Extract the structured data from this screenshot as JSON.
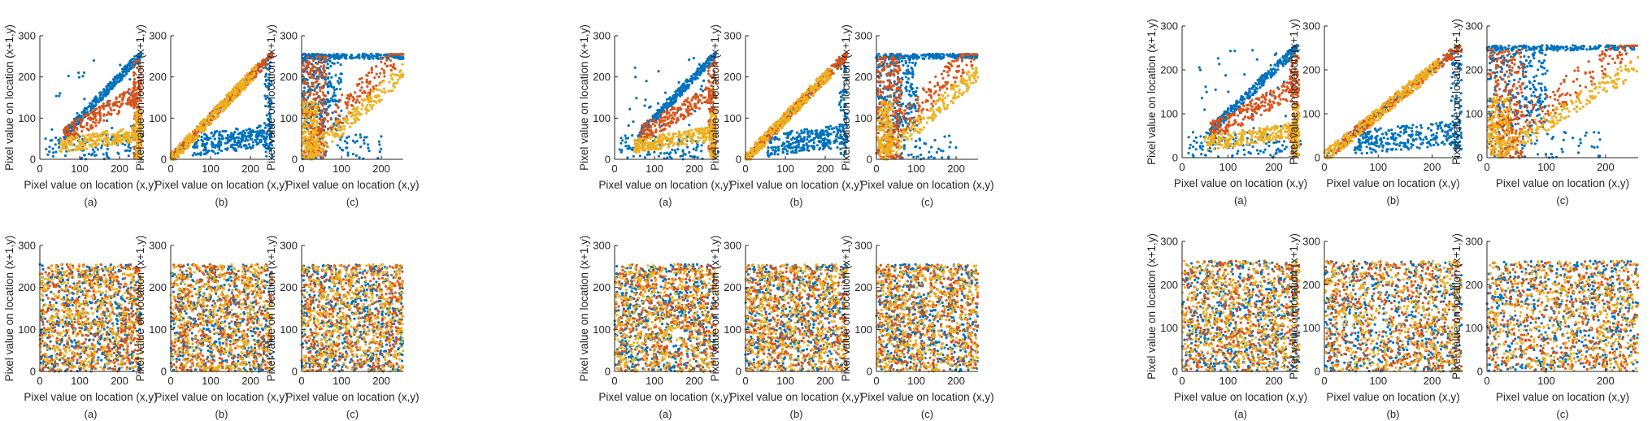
{
  "figure": {
    "colors": {
      "blue": "#0072BD",
      "orange": "#D95319",
      "yellow": "#EDB120",
      "axis": "#262626"
    }
  },
  "chart_data": [
    {
      "type": "scatter",
      "pattern": "corr-a",
      "xlabel": "Pixel value on location (x,y)",
      "ylabel": "Pixel value on location (x+1,y)",
      "panel_label": "(a)",
      "xticks": [
        0,
        100,
        200
      ],
      "yticks": [
        0,
        100,
        200,
        300
      ],
      "xlim": [
        0,
        255
      ],
      "ylim": [
        0,
        300
      ],
      "series_colors": [
        "#0072BD",
        "#D95319",
        "#EDB120"
      ]
    },
    {
      "type": "scatter",
      "pattern": "corr-b",
      "xlabel": "Pixel value on location (x,y)",
      "ylabel": "Pixel value on location (x+1,y)",
      "panel_label": "(b)",
      "xticks": [
        0,
        100,
        200
      ],
      "yticks": [
        0,
        100,
        200,
        300
      ],
      "xlim": [
        0,
        255
      ],
      "ylim": [
        0,
        300
      ],
      "series_colors": [
        "#0072BD",
        "#D95319",
        "#EDB120"
      ]
    },
    {
      "type": "scatter",
      "pattern": "corr-c",
      "xlabel": "Pixel value on location (x,y)",
      "ylabel": "Pixel value on location (x+1,y)",
      "panel_label": "(c)",
      "xticks": [
        0,
        100,
        200
      ],
      "yticks": [
        0,
        100,
        200,
        300
      ],
      "xlim": [
        0,
        255
      ],
      "ylim": [
        0,
        300
      ],
      "series_colors": [
        "#0072BD",
        "#D95319",
        "#EDB120"
      ]
    },
    {
      "type": "scatter",
      "pattern": "corr-a",
      "xlabel": "Pixel value on location (x,y)",
      "ylabel": "Pixel value on location (x+1,y)",
      "panel_label": "(a)",
      "xticks": [
        0,
        100,
        200
      ],
      "yticks": [
        0,
        100,
        200,
        300
      ],
      "xlim": [
        0,
        255
      ],
      "ylim": [
        0,
        300
      ],
      "series_colors": [
        "#0072BD",
        "#D95319",
        "#EDB120"
      ]
    },
    {
      "type": "scatter",
      "pattern": "corr-b",
      "xlabel": "Pixel value on location (x,y)",
      "ylabel": "Pixel value on location (x+1,y)",
      "panel_label": "(b)",
      "xticks": [
        0,
        100,
        200
      ],
      "yticks": [
        0,
        100,
        200,
        300
      ],
      "xlim": [
        0,
        255
      ],
      "ylim": [
        0,
        300
      ],
      "series_colors": [
        "#0072BD",
        "#D95319",
        "#EDB120"
      ]
    },
    {
      "type": "scatter",
      "pattern": "corr-c",
      "xlabel": "Pixel value on location (x,y)",
      "ylabel": "Pixel value on location (x+1,y)",
      "panel_label": "(c)",
      "xticks": [
        0,
        100,
        200
      ],
      "yticks": [
        0,
        100,
        200,
        300
      ],
      "xlim": [
        0,
        255
      ],
      "ylim": [
        0,
        300
      ],
      "series_colors": [
        "#0072BD",
        "#D95319",
        "#EDB120"
      ]
    },
    {
      "type": "scatter",
      "pattern": "corr-a",
      "xlabel": "Pixel value on location (x,y)",
      "ylabel": "Pixel value on location (x+1,y)",
      "panel_label": "(a)",
      "xticks": [
        0,
        100,
        200
      ],
      "yticks": [
        0,
        100,
        200,
        300
      ],
      "xlim": [
        0,
        255
      ],
      "ylim": [
        0,
        300
      ],
      "series_colors": [
        "#0072BD",
        "#D95319",
        "#EDB120"
      ]
    },
    {
      "type": "scatter",
      "pattern": "corr-b",
      "xlabel": "Pixel value on location (x,y)",
      "ylabel": "Pixel value on location (x+1,y)",
      "panel_label": "(b)",
      "xticks": [
        0,
        100,
        200
      ],
      "yticks": [
        0,
        100,
        200,
        300
      ],
      "xlim": [
        0,
        255
      ],
      "ylim": [
        0,
        300
      ],
      "series_colors": [
        "#0072BD",
        "#D95319",
        "#EDB120"
      ]
    },
    {
      "type": "scatter",
      "pattern": "corr-c",
      "xlabel": "Pixel value on location (x,y)",
      "ylabel": "Pixel value on location (x+1,y)",
      "panel_label": "(c)",
      "xticks": [
        0,
        100,
        200
      ],
      "yticks": [
        0,
        100,
        200,
        300
      ],
      "xlim": [
        0,
        255
      ],
      "ylim": [
        0,
        300
      ],
      "series_colors": [
        "#0072BD",
        "#D95319",
        "#EDB120"
      ]
    },
    {
      "type": "scatter",
      "pattern": "uniform",
      "xlabel": "Pixel value on location (x,y)",
      "ylabel": "Pixel value on location (x+1,y)",
      "panel_label": "(a)",
      "xticks": [
        0,
        100,
        200
      ],
      "yticks": [
        0,
        100,
        200,
        300
      ],
      "xlim": [
        0,
        255
      ],
      "ylim": [
        0,
        300
      ],
      "series_colors": [
        "#0072BD",
        "#D95319",
        "#EDB120"
      ]
    },
    {
      "type": "scatter",
      "pattern": "uniform",
      "xlabel": "Pixel value on location (x,y)",
      "ylabel": "Pixel value on location (x+1,y)",
      "panel_label": "(b)",
      "xticks": [
        0,
        100,
        200
      ],
      "yticks": [
        0,
        100,
        200,
        300
      ],
      "xlim": [
        0,
        255
      ],
      "ylim": [
        0,
        300
      ],
      "series_colors": [
        "#0072BD",
        "#D95319",
        "#EDB120"
      ]
    },
    {
      "type": "scatter",
      "pattern": "uniform",
      "xlabel": "Pixel value on location (x,y)",
      "ylabel": "Pixel value on location (x+1,y)",
      "panel_label": "(c)",
      "xticks": [
        0,
        100,
        200
      ],
      "yticks": [
        0,
        100,
        200,
        300
      ],
      "xlim": [
        0,
        255
      ],
      "ylim": [
        0,
        300
      ],
      "series_colors": [
        "#0072BD",
        "#D95319",
        "#EDB120"
      ]
    },
    {
      "type": "scatter",
      "pattern": "uniform",
      "xlabel": "Pixel value on location (x,y)",
      "ylabel": "Pixel value on location (x+1,y)",
      "panel_label": "(a)",
      "xticks": [
        0,
        100,
        200
      ],
      "yticks": [
        0,
        100,
        200,
        300
      ],
      "xlim": [
        0,
        255
      ],
      "ylim": [
        0,
        300
      ],
      "series_colors": [
        "#0072BD",
        "#D95319",
        "#EDB120"
      ]
    },
    {
      "type": "scatter",
      "pattern": "uniform",
      "xlabel": "Pixel value on location (x,y)",
      "ylabel": "Pixel value on location (x+1,y)",
      "panel_label": "(b)",
      "xticks": [
        0,
        100,
        200
      ],
      "yticks": [
        0,
        100,
        200,
        300
      ],
      "xlim": [
        0,
        255
      ],
      "ylim": [
        0,
        300
      ],
      "series_colors": [
        "#0072BD",
        "#D95319",
        "#EDB120"
      ]
    },
    {
      "type": "scatter",
      "pattern": "uniform",
      "xlabel": "Pixel value on location (x,y)",
      "ylabel": "Pixel value on location (x+1,y)",
      "panel_label": "(c)",
      "xticks": [
        0,
        100,
        200
      ],
      "yticks": [
        0,
        100,
        200,
        300
      ],
      "xlim": [
        0,
        255
      ],
      "ylim": [
        0,
        300
      ],
      "series_colors": [
        "#0072BD",
        "#D95319",
        "#EDB120"
      ]
    },
    {
      "type": "scatter",
      "pattern": "uniform",
      "xlabel": "Pixel value on location (x,y)",
      "ylabel": "Pixel value on location (x+1,y)",
      "panel_label": "(a)",
      "xticks": [
        0,
        100,
        200
      ],
      "yticks": [
        0,
        100,
        200,
        300
      ],
      "xlim": [
        0,
        255
      ],
      "ylim": [
        0,
        300
      ],
      "series_colors": [
        "#0072BD",
        "#D95319",
        "#EDB120"
      ]
    },
    {
      "type": "scatter",
      "pattern": "uniform",
      "xlabel": "Pixel value on location (x,y)",
      "ylabel": "Pixel value on location (x+1,y)",
      "panel_label": "(b)",
      "xticks": [
        0,
        100,
        200
      ],
      "yticks": [
        0,
        100,
        200,
        300
      ],
      "xlim": [
        0,
        255
      ],
      "ylim": [
        0,
        300
      ],
      "series_colors": [
        "#0072BD",
        "#D95319",
        "#EDB120"
      ]
    },
    {
      "type": "scatter",
      "pattern": "uniform",
      "xlabel": "Pixel value on location (x,y)",
      "ylabel": "Pixel value on location (x+1,y)",
      "panel_label": "(c)",
      "xticks": [
        0,
        100,
        200
      ],
      "yticks": [
        0,
        100,
        200,
        300
      ],
      "xlim": [
        0,
        255
      ],
      "ylim": [
        0,
        300
      ],
      "series_colors": [
        "#0072BD",
        "#D95319",
        "#EDB120"
      ]
    }
  ]
}
